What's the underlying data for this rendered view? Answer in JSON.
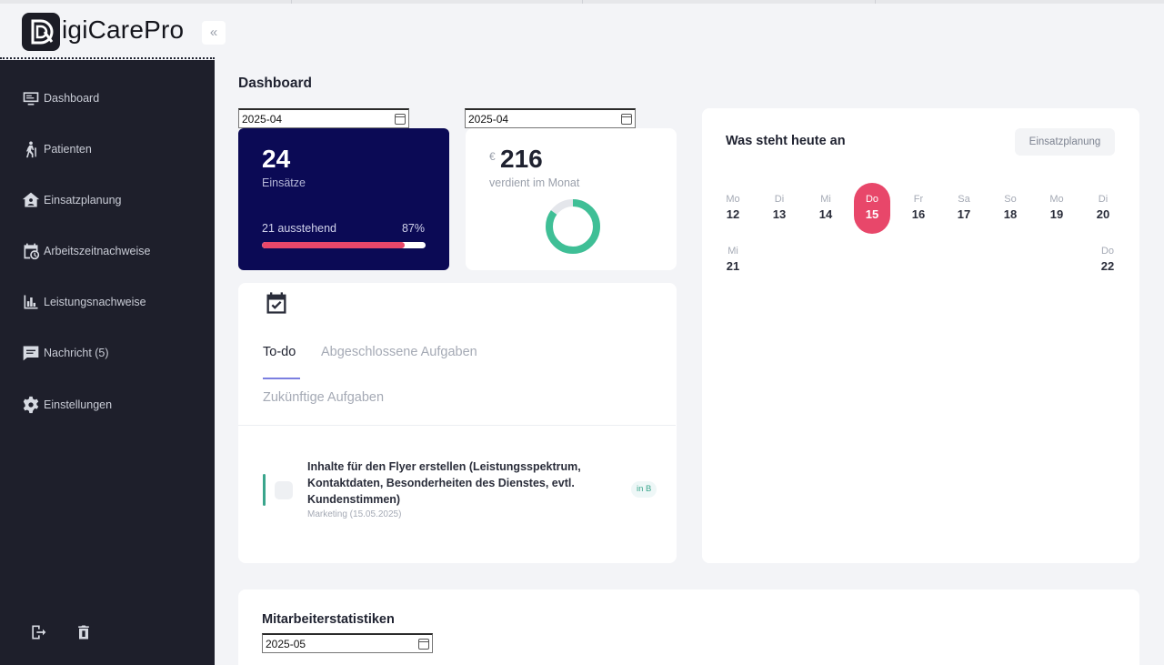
{
  "app": {
    "name": "igiCarePro",
    "collapse_icon": "«"
  },
  "sidebar": {
    "items": [
      {
        "label": "Dashboard",
        "icon": "monitor-icon"
      },
      {
        "label": "Patienten",
        "icon": "person-walking-icon"
      },
      {
        "label": "Einsatzplanung",
        "icon": "house-user-icon"
      },
      {
        "label": "Arbeitszeitnachweise",
        "icon": "calendar-clock-icon"
      },
      {
        "label": "Leistungsnachweise",
        "icon": "bar-chart-icon"
      },
      {
        "label": "Nachricht (5)",
        "icon": "message-icon"
      },
      {
        "label": "Einstellungen",
        "icon": "gear-icon"
      }
    ],
    "bottom": [
      "logout-icon",
      "trash-icon"
    ]
  },
  "page": {
    "title": "Dashboard"
  },
  "filters": {
    "month_left": "2025-04",
    "month_right": "2025-04"
  },
  "stats": {
    "assignments": "24",
    "assignments_label": "Einsätze",
    "pending_label": "21 ausstehend",
    "pending_percent": "87%",
    "progress_fraction": 0.87,
    "currency": "€",
    "earned": "216",
    "earned_label": "verdient im Monat",
    "donut_fraction": 0.85
  },
  "tasks": {
    "tabs": [
      "To-do",
      "Abgeschlossene Aufgaben",
      "Zukünftige Aufgaben"
    ],
    "items": [
      {
        "title": "Inhalte für den Flyer erstellen (Leistungsspektrum, Kontaktdaten, Besonderheiten des Dienstes, evtl. Kundenstimmen)",
        "meta": "Marketing (15.05.2025)",
        "badge": "in B"
      }
    ]
  },
  "today": {
    "title": "Was steht heute an",
    "button": "Einsatzplanung",
    "days": [
      {
        "dn": "Mo",
        "dd": "12"
      },
      {
        "dn": "Di",
        "dd": "13"
      },
      {
        "dn": "Mi",
        "dd": "14"
      },
      {
        "dn": "Do",
        "dd": "15",
        "active": true
      },
      {
        "dn": "Fr",
        "dd": "16"
      },
      {
        "dn": "Sa",
        "dd": "17"
      },
      {
        "dn": "So",
        "dd": "18"
      },
      {
        "dn": "Mo",
        "dd": "19"
      },
      {
        "dn": "Di",
        "dd": "20"
      },
      {
        "dn": "Mi",
        "dd": "21"
      },
      {
        "dn": "Do",
        "dd": "22"
      }
    ]
  },
  "employee_stats": {
    "title": "Mitarbeiterstatistiken",
    "month": "2025-05"
  },
  "colors": {
    "sidebar": "#1e1f2b",
    "primary_card": "#0b0a55",
    "accent": "#e8476a",
    "success": "#3aa58c"
  }
}
